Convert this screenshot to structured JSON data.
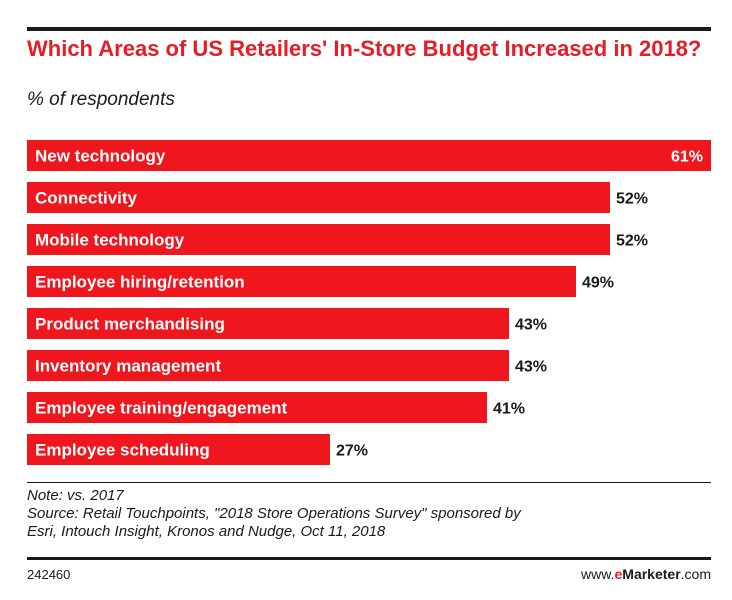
{
  "header": {
    "title": "Which Areas of US Retailers' In-Store Budget Increased in 2018?",
    "subtitle": "% of respondents"
  },
  "chart_data": {
    "type": "bar",
    "orientation": "horizontal",
    "title": "Which Areas of US Retailers' In-Store Budget Increased in 2018?",
    "subtitle": "% of respondents",
    "categories": [
      "New technology",
      "Connectivity",
      "Mobile technology",
      "Employee hiring/retention",
      "Product merchandising",
      "Inventory management",
      "Employee training/engagement",
      "Employee scheduling"
    ],
    "values": [
      61,
      52,
      52,
      49,
      43,
      43,
      41,
      27
    ],
    "value_labels": [
      "61%",
      "52%",
      "52%",
      "49%",
      "43%",
      "43%",
      "41%",
      "27%"
    ],
    "unit": "%",
    "xlim": [
      0,
      61
    ],
    "grid": false,
    "legend": "none",
    "bar_color": "#f0161d"
  },
  "footer": {
    "note": "Note: vs. 2017",
    "source_line1": "Source: Retail Touchpoints, \"2018 Store Operations Survey\" sponsored by",
    "source_line2": "Esri, Intouch Insight, Kronos and Nudge, Oct 11, 2018",
    "chart_id": "242460",
    "brand_prefix": "www.",
    "brand_e": "e",
    "brand_name": "Marketer",
    "brand_suffix": ".com"
  },
  "colors": {
    "accent": "#e41d26",
    "text": "#1a1a1a"
  }
}
